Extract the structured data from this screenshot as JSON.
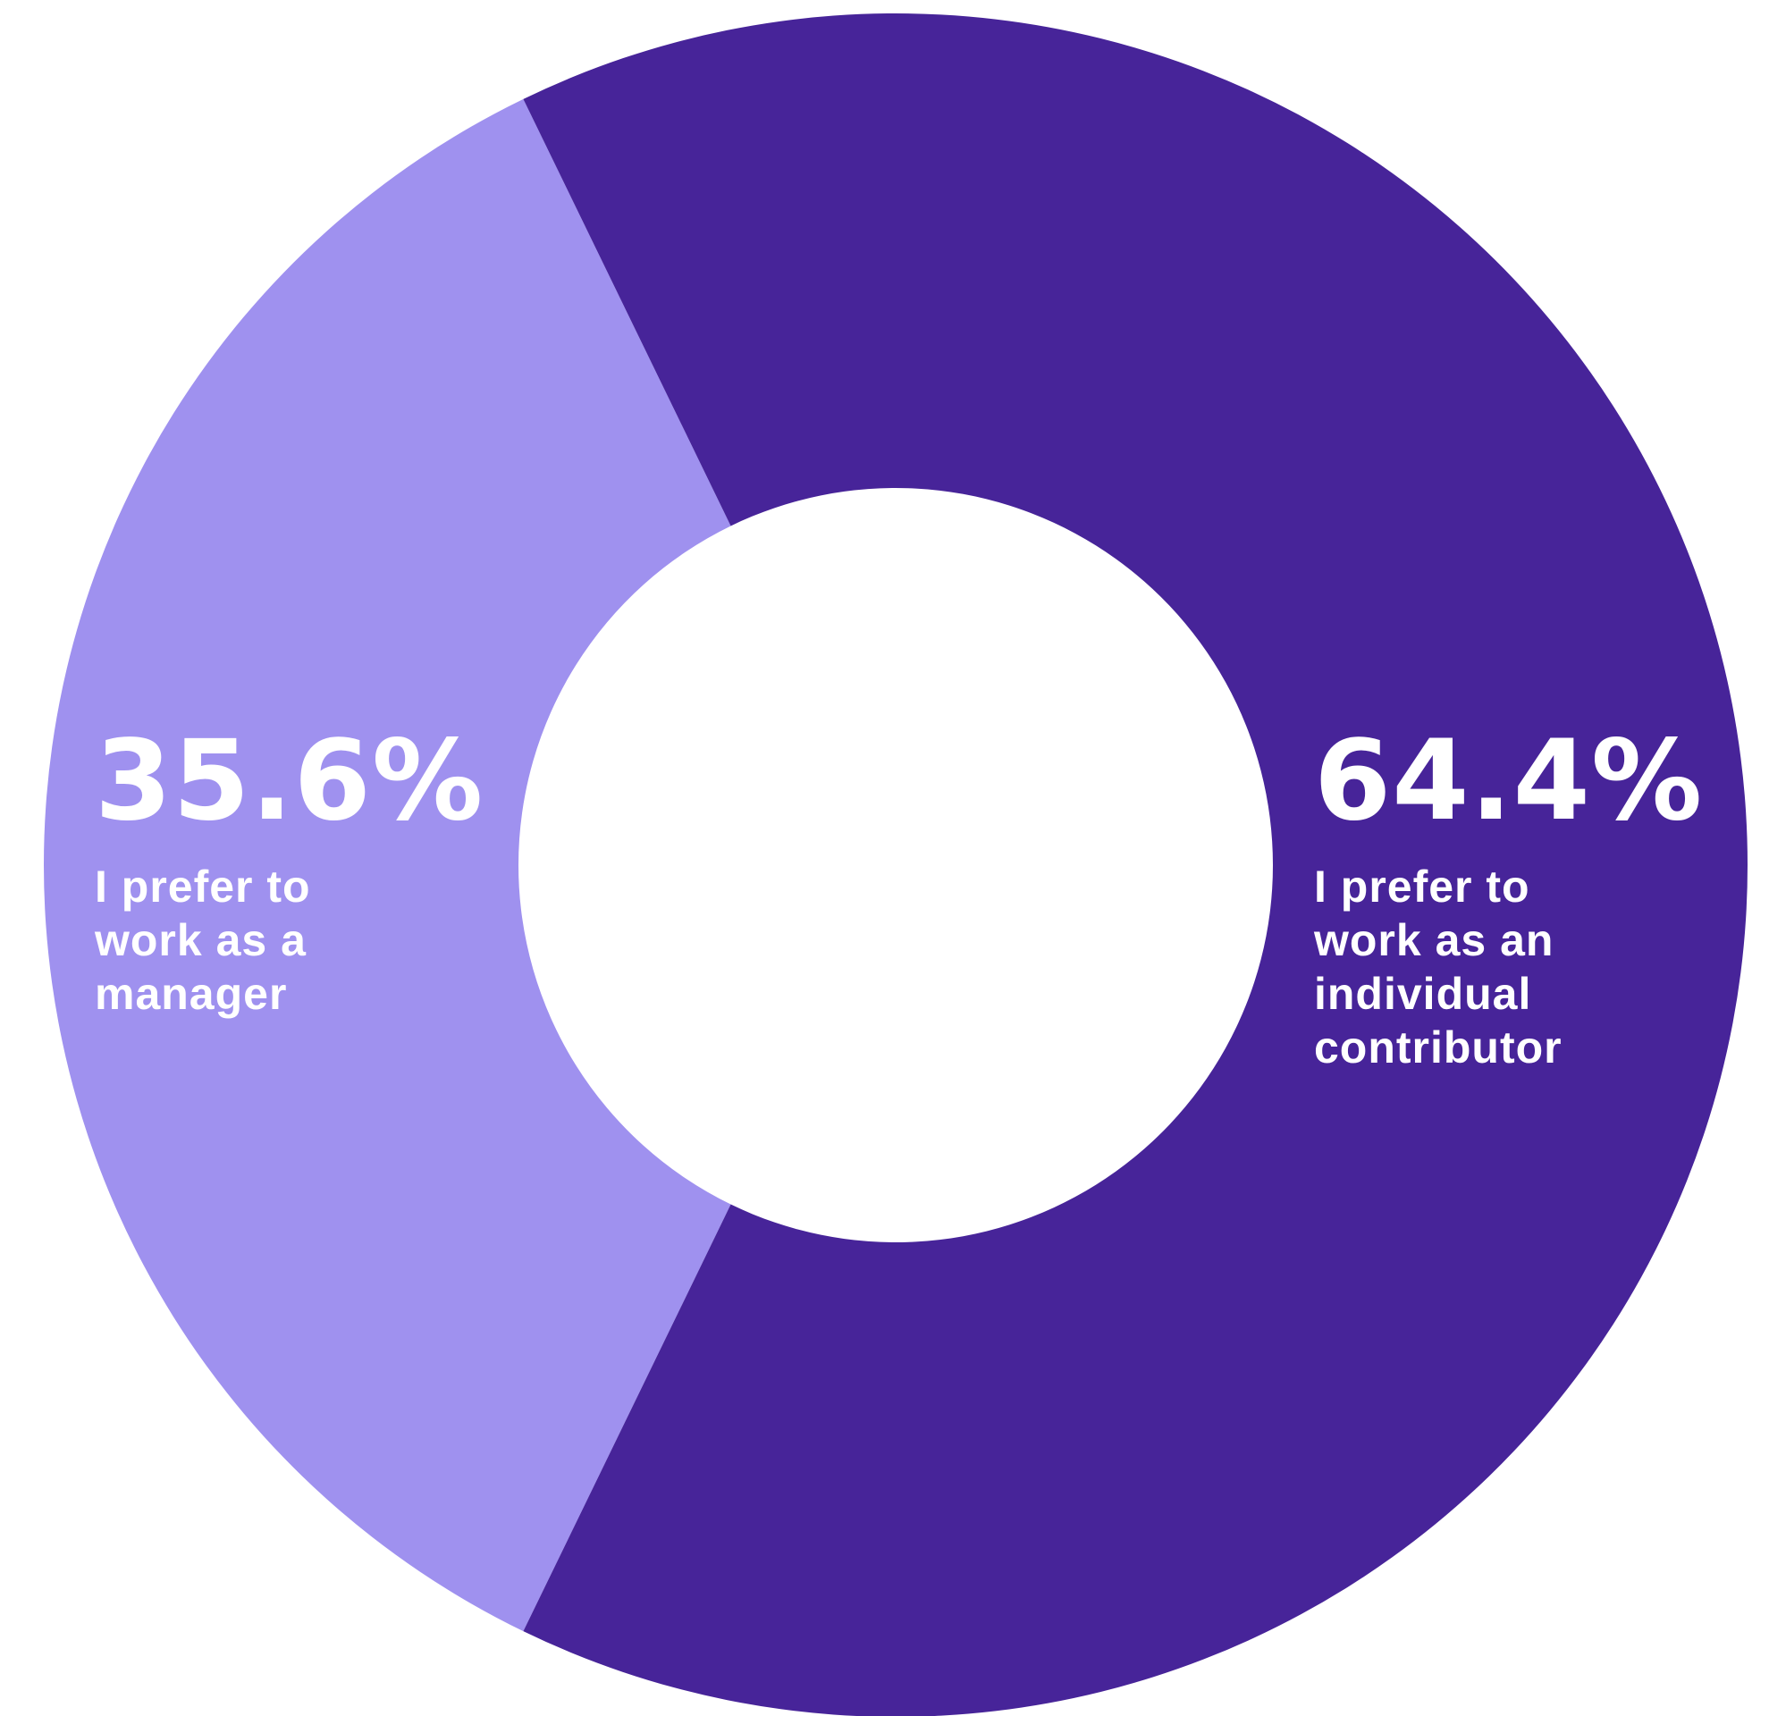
{
  "chart_data": {
    "type": "pie",
    "variant": "donut",
    "title": "",
    "slices": [
      {
        "label": "I prefer to work as a manager",
        "label_lines": "I prefer to\nwork as a\nmanager",
        "value": 35.6,
        "value_label": "35.6%",
        "color": "#9f91ef"
      },
      {
        "label": "I prefer to work as an individual contributor",
        "label_lines": "I prefer to\nwork as an\nindividual\ncontributor",
        "value": 64.4,
        "value_label": "64.4%",
        "color": "#472499"
      }
    ]
  }
}
